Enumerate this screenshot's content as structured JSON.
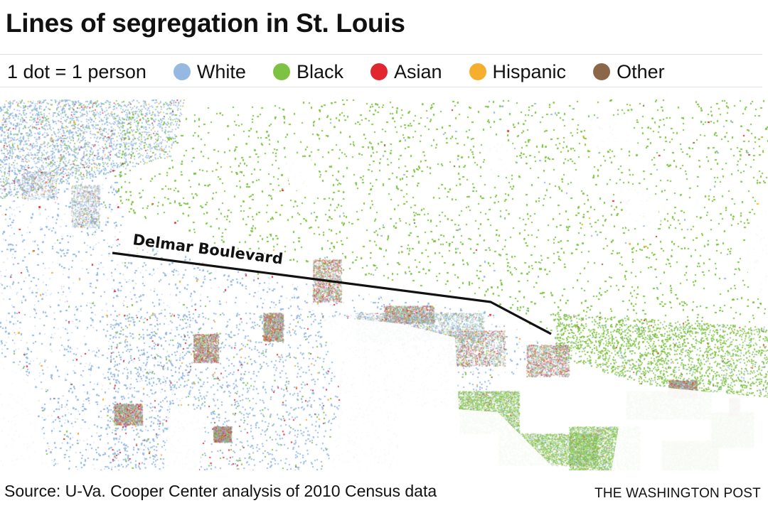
{
  "title": "Lines of segregation in St. Louis",
  "legend": {
    "scale_label": "1 dot = 1 person",
    "items": [
      {
        "label": "White",
        "color": "#95b9e0"
      },
      {
        "label": "Black",
        "color": "#7dc242"
      },
      {
        "label": "Asian",
        "color": "#e2262f"
      },
      {
        "label": "Hispanic",
        "color": "#f6ae2d"
      },
      {
        "label": "Other",
        "color": "#8c6648"
      }
    ]
  },
  "map": {
    "road_label": "Delmar Boulevard",
    "road_color": "#111111",
    "blank_color": "#ffffff"
  },
  "footer": {
    "source": "Source: U-Va. Cooper Center analysis of 2010 Census data",
    "credit": "THE WASHINGTON POST"
  }
}
